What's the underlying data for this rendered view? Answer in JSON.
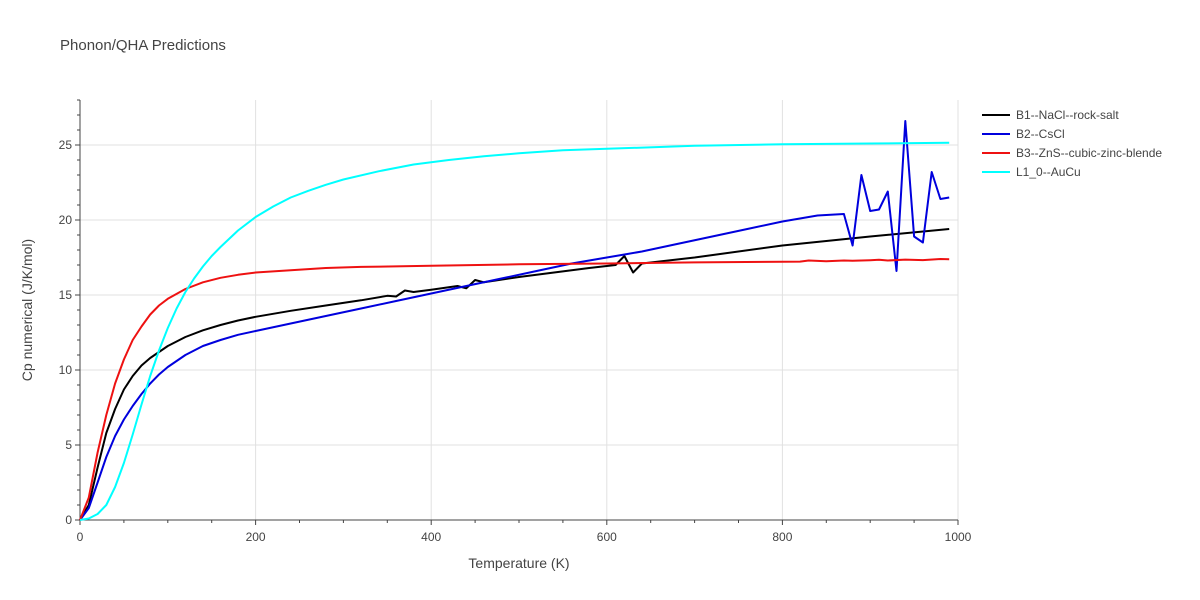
{
  "chart_data": {
    "type": "line",
    "title": "Phonon/QHA Predictions",
    "xlabel": "Temperature (K)",
    "ylabel": "Cp numerical (J/K/mol)",
    "xlim": [
      0,
      1000
    ],
    "ylim": [
      0,
      28
    ],
    "xticks": [
      0,
      200,
      400,
      600,
      800,
      1000
    ],
    "yticks": [
      0,
      5,
      10,
      15,
      20,
      25
    ],
    "grid": true,
    "legend_position": "top-right",
    "series": [
      {
        "name": "B1--NaCl--rock-salt",
        "color": "#000000",
        "x": [
          0,
          10,
          20,
          30,
          40,
          50,
          60,
          70,
          80,
          90,
          100,
          120,
          140,
          160,
          180,
          200,
          240,
          280,
          320,
          350,
          360,
          370,
          380,
          400,
          430,
          440,
          450,
          460,
          500,
          540,
          580,
          610,
          620,
          630,
          640,
          700,
          800,
          900,
          990
        ],
        "y": [
          0,
          1.0,
          3.5,
          5.8,
          7.4,
          8.7,
          9.6,
          10.3,
          10.8,
          11.2,
          11.6,
          12.2,
          12.65,
          13.0,
          13.3,
          13.55,
          13.95,
          14.3,
          14.65,
          14.95,
          14.9,
          15.3,
          15.2,
          15.35,
          15.6,
          15.45,
          16.0,
          15.85,
          16.2,
          16.5,
          16.8,
          17.0,
          17.6,
          16.5,
          17.1,
          17.5,
          18.3,
          18.9,
          19.4
        ]
      },
      {
        "name": "B2--CsCl",
        "color": "#0000dd",
        "x": [
          0,
          10,
          20,
          30,
          40,
          50,
          60,
          70,
          80,
          90,
          100,
          120,
          140,
          160,
          180,
          200,
          240,
          280,
          320,
          360,
          400,
          440,
          480,
          520,
          560,
          600,
          620,
          640,
          680,
          720,
          760,
          800,
          840,
          870,
          880,
          890,
          900,
          910,
          920,
          930,
          940,
          950,
          960,
          970,
          980,
          990
        ],
        "y": [
          0,
          0.8,
          2.5,
          4.2,
          5.6,
          6.7,
          7.6,
          8.4,
          9.1,
          9.7,
          10.2,
          11.0,
          11.6,
          12.0,
          12.35,
          12.6,
          13.1,
          13.6,
          14.1,
          14.6,
          15.1,
          15.6,
          16.1,
          16.6,
          17.1,
          17.5,
          17.7,
          17.9,
          18.4,
          18.9,
          19.4,
          19.9,
          20.3,
          20.4,
          18.3,
          23.0,
          20.6,
          20.7,
          21.9,
          16.6,
          26.6,
          18.9,
          18.5,
          23.2,
          21.4,
          21.5
        ]
      },
      {
        "name": "B3--ZnS--cubic-zinc-blende",
        "color": "#ee1111",
        "x": [
          0,
          10,
          20,
          30,
          40,
          50,
          60,
          70,
          80,
          90,
          100,
          120,
          140,
          160,
          180,
          200,
          240,
          280,
          320,
          400,
          500,
          600,
          700,
          800,
          820,
          830,
          850,
          870,
          880,
          900,
          910,
          920,
          940,
          960,
          980,
          990
        ],
        "y": [
          0,
          1.5,
          4.5,
          7.0,
          9.1,
          10.7,
          12.0,
          12.9,
          13.7,
          14.3,
          14.75,
          15.4,
          15.85,
          16.15,
          16.35,
          16.5,
          16.65,
          16.8,
          16.87,
          16.95,
          17.05,
          17.1,
          17.17,
          17.22,
          17.23,
          17.3,
          17.25,
          17.3,
          17.28,
          17.32,
          17.35,
          17.3,
          17.36,
          17.33,
          17.4,
          17.38
        ]
      },
      {
        "name": "L1_0--AuCu",
        "color": "#00ffff",
        "x": [
          0,
          10,
          20,
          30,
          40,
          50,
          60,
          70,
          80,
          90,
          100,
          110,
          120,
          130,
          140,
          150,
          160,
          180,
          200,
          220,
          240,
          260,
          280,
          300,
          340,
          380,
          420,
          460,
          500,
          550,
          600,
          700,
          800,
          900,
          990
        ],
        "y": [
          0,
          0.1,
          0.4,
          1.0,
          2.2,
          3.8,
          5.7,
          7.7,
          9.6,
          11.3,
          12.8,
          14.1,
          15.2,
          16.1,
          16.9,
          17.6,
          18.2,
          19.3,
          20.2,
          20.9,
          21.5,
          21.95,
          22.35,
          22.7,
          23.25,
          23.7,
          24.0,
          24.25,
          24.45,
          24.65,
          24.75,
          24.95,
          25.05,
          25.1,
          25.15
        ]
      }
    ]
  }
}
